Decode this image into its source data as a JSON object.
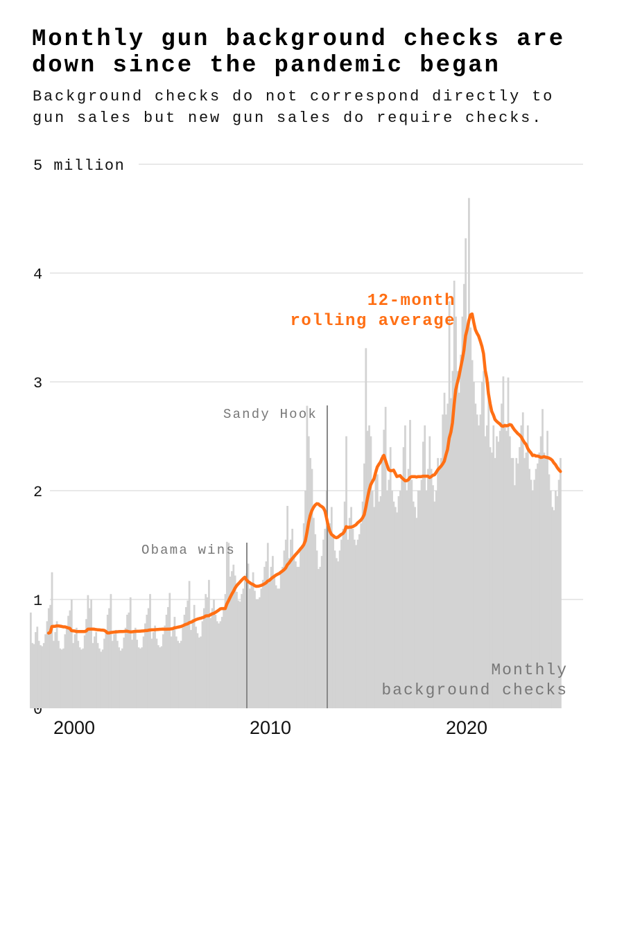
{
  "title_line1": "Monthly gun background checks are",
  "title_line2": "down since the pandemic began",
  "subtitle_line1": "Background checks do not correspond directly to",
  "subtitle_line2": "gun sales but new gun sales do require checks.",
  "chart_data": {
    "type": "bar",
    "title": "Monthly gun background checks are down since the pandemic began",
    "y_unit": "million",
    "ylim": [
      0,
      5
    ],
    "y_ticks": [
      "0",
      "1",
      "2",
      "3",
      "4",
      "5 million"
    ],
    "x_ticks": [
      "2000",
      "2010",
      "2020"
    ],
    "grid": true,
    "colors": {
      "bars": "#d3d3d3",
      "rolling": "#ff6f14",
      "grid": "#d0d0d0",
      "annotation_line": "#888888"
    },
    "start_month": "1998-11",
    "series": [
      {
        "name": "Monthly background checks",
        "label_line1": "Monthly",
        "label_line2": "background checks",
        "type": "bar",
        "values_by_year": {
          "1998": [
            0.88,
            0.6
          ],
          "1999": [
            0.59,
            0.7,
            0.75,
            0.62,
            0.58,
            0.57,
            0.6,
            0.68,
            0.8,
            0.92,
            0.95,
            1.25
          ],
          "2000": [
            0.62,
            0.7,
            0.8,
            0.62,
            0.55,
            0.54,
            0.55,
            0.68,
            0.75,
            0.85,
            0.9,
            1.0
          ],
          "2001": [
            0.6,
            0.68,
            0.74,
            0.62,
            0.56,
            0.54,
            0.55,
            0.67,
            0.82,
            1.04,
            0.92,
            1.0
          ],
          "2002": [
            0.6,
            0.66,
            0.7,
            0.6,
            0.55,
            0.52,
            0.54,
            0.64,
            0.72,
            0.86,
            0.92,
            1.05
          ],
          "2003": [
            0.62,
            0.68,
            0.72,
            0.62,
            0.56,
            0.53,
            0.55,
            0.65,
            0.74,
            0.86,
            0.88,
            1.02
          ],
          "2004": [
            0.63,
            0.7,
            0.74,
            0.63,
            0.56,
            0.55,
            0.56,
            0.66,
            0.78,
            0.86,
            0.92,
            1.05
          ],
          "2005": [
            0.64,
            0.7,
            0.76,
            0.64,
            0.58,
            0.56,
            0.57,
            0.68,
            0.76,
            0.86,
            0.93,
            1.06
          ],
          "2006": [
            0.66,
            0.74,
            0.84,
            0.66,
            0.62,
            0.6,
            0.62,
            0.74,
            0.86,
            0.93,
            0.99,
            1.17
          ],
          "2007": [
            0.72,
            0.82,
            0.95,
            0.75,
            0.69,
            0.65,
            0.66,
            0.8,
            0.92,
            1.05,
            1.02,
            1.18
          ],
          "2008": [
            0.83,
            0.92,
            1.0,
            0.86,
            0.8,
            0.78,
            0.8,
            0.84,
            0.92,
            1.05,
            1.53,
            1.52
          ],
          "2009": [
            1.21,
            1.26,
            1.32,
            1.22,
            1.07,
            0.99,
            0.98,
            1.05,
            1.1,
            1.2,
            1.24,
            1.33
          ],
          "2010": [
            1.1,
            1.13,
            1.25,
            1.08,
            1.0,
            1.0,
            1.02,
            1.1,
            1.18,
            1.3,
            1.35,
            1.52
          ],
          "2011": [
            1.18,
            1.3,
            1.4,
            1.2,
            1.13,
            1.1,
            1.1,
            1.25,
            1.3,
            1.45,
            1.55,
            1.86
          ],
          "2012": [
            1.38,
            1.55,
            1.65,
            1.4,
            1.35,
            1.3,
            1.3,
            1.48,
            1.5,
            1.7,
            2.0,
            2.78
          ],
          "2013": [
            2.5,
            2.3,
            2.2,
            1.75,
            1.6,
            1.45,
            1.28,
            1.3,
            1.4,
            1.55,
            1.65,
            2.0
          ],
          "2014": [
            1.65,
            1.7,
            1.85,
            1.6,
            1.45,
            1.38,
            1.35,
            1.45,
            1.55,
            1.65,
            1.9,
            2.5
          ],
          "2015": [
            1.55,
            1.75,
            1.85,
            1.65,
            1.55,
            1.5,
            1.55,
            1.6,
            1.7,
            1.9,
            2.25,
            3.31
          ],
          "2016": [
            2.55,
            2.6,
            2.5,
            2.0,
            1.85,
            2.2,
            2.15,
            1.9,
            1.95,
            2.33,
            2.56,
            2.77
          ],
          "2017": [
            2.0,
            2.1,
            2.4,
            2.0,
            1.9,
            1.85,
            1.8,
            1.95,
            2.0,
            2.1,
            2.4,
            2.6
          ],
          "2018": [
            2.0,
            2.2,
            2.65,
            2.1,
            1.9,
            1.85,
            1.75,
            2.0,
            2.0,
            2.1,
            2.45,
            2.6
          ],
          "2019": [
            2.0,
            2.2,
            2.5,
            2.2,
            2.05,
            1.9,
            2.0,
            2.3,
            2.2,
            2.3,
            2.7,
            2.9
          ],
          "2020": [
            2.7,
            2.8,
            3.74,
            2.85,
            3.1,
            3.93,
            3.6,
            3.1,
            2.9,
            3.25,
            3.6,
            3.9
          ],
          "2021": [
            4.32,
            3.5,
            4.69,
            3.5,
            3.2,
            3.0,
            2.8,
            2.7,
            2.6,
            2.7,
            3.0,
            3.1
          ],
          "2022": [
            2.5,
            2.6,
            3.0,
            2.4,
            2.35,
            2.6,
            2.3,
            2.5,
            2.45,
            2.55,
            2.8,
            3.05
          ],
          "2023": [
            2.6,
            2.55,
            3.04,
            2.5,
            2.3,
            2.3,
            2.05,
            2.3,
            2.25,
            2.4,
            2.6,
            2.72
          ],
          "2024": [
            2.3,
            2.35,
            2.6,
            2.2,
            2.1,
            2.0,
            2.1,
            2.2,
            2.25,
            2.35,
            2.5,
            2.75
          ],
          "2025": [
            2.35,
            2.3,
            2.55,
            2.15,
            2.0,
            1.85,
            1.82,
            2.0,
            1.95,
            2.1,
            2.3
          ]
        }
      },
      {
        "name": "12-month rolling average",
        "label_line1": "12-month",
        "label_line2": "rolling average",
        "type": "line",
        "derived_from": "Monthly background checks",
        "window_months": 12
      }
    ],
    "annotations": [
      {
        "label": "Obama wins",
        "date": "2008-11"
      },
      {
        "label": "Sandy Hook",
        "date": "2012-12"
      }
    ]
  }
}
